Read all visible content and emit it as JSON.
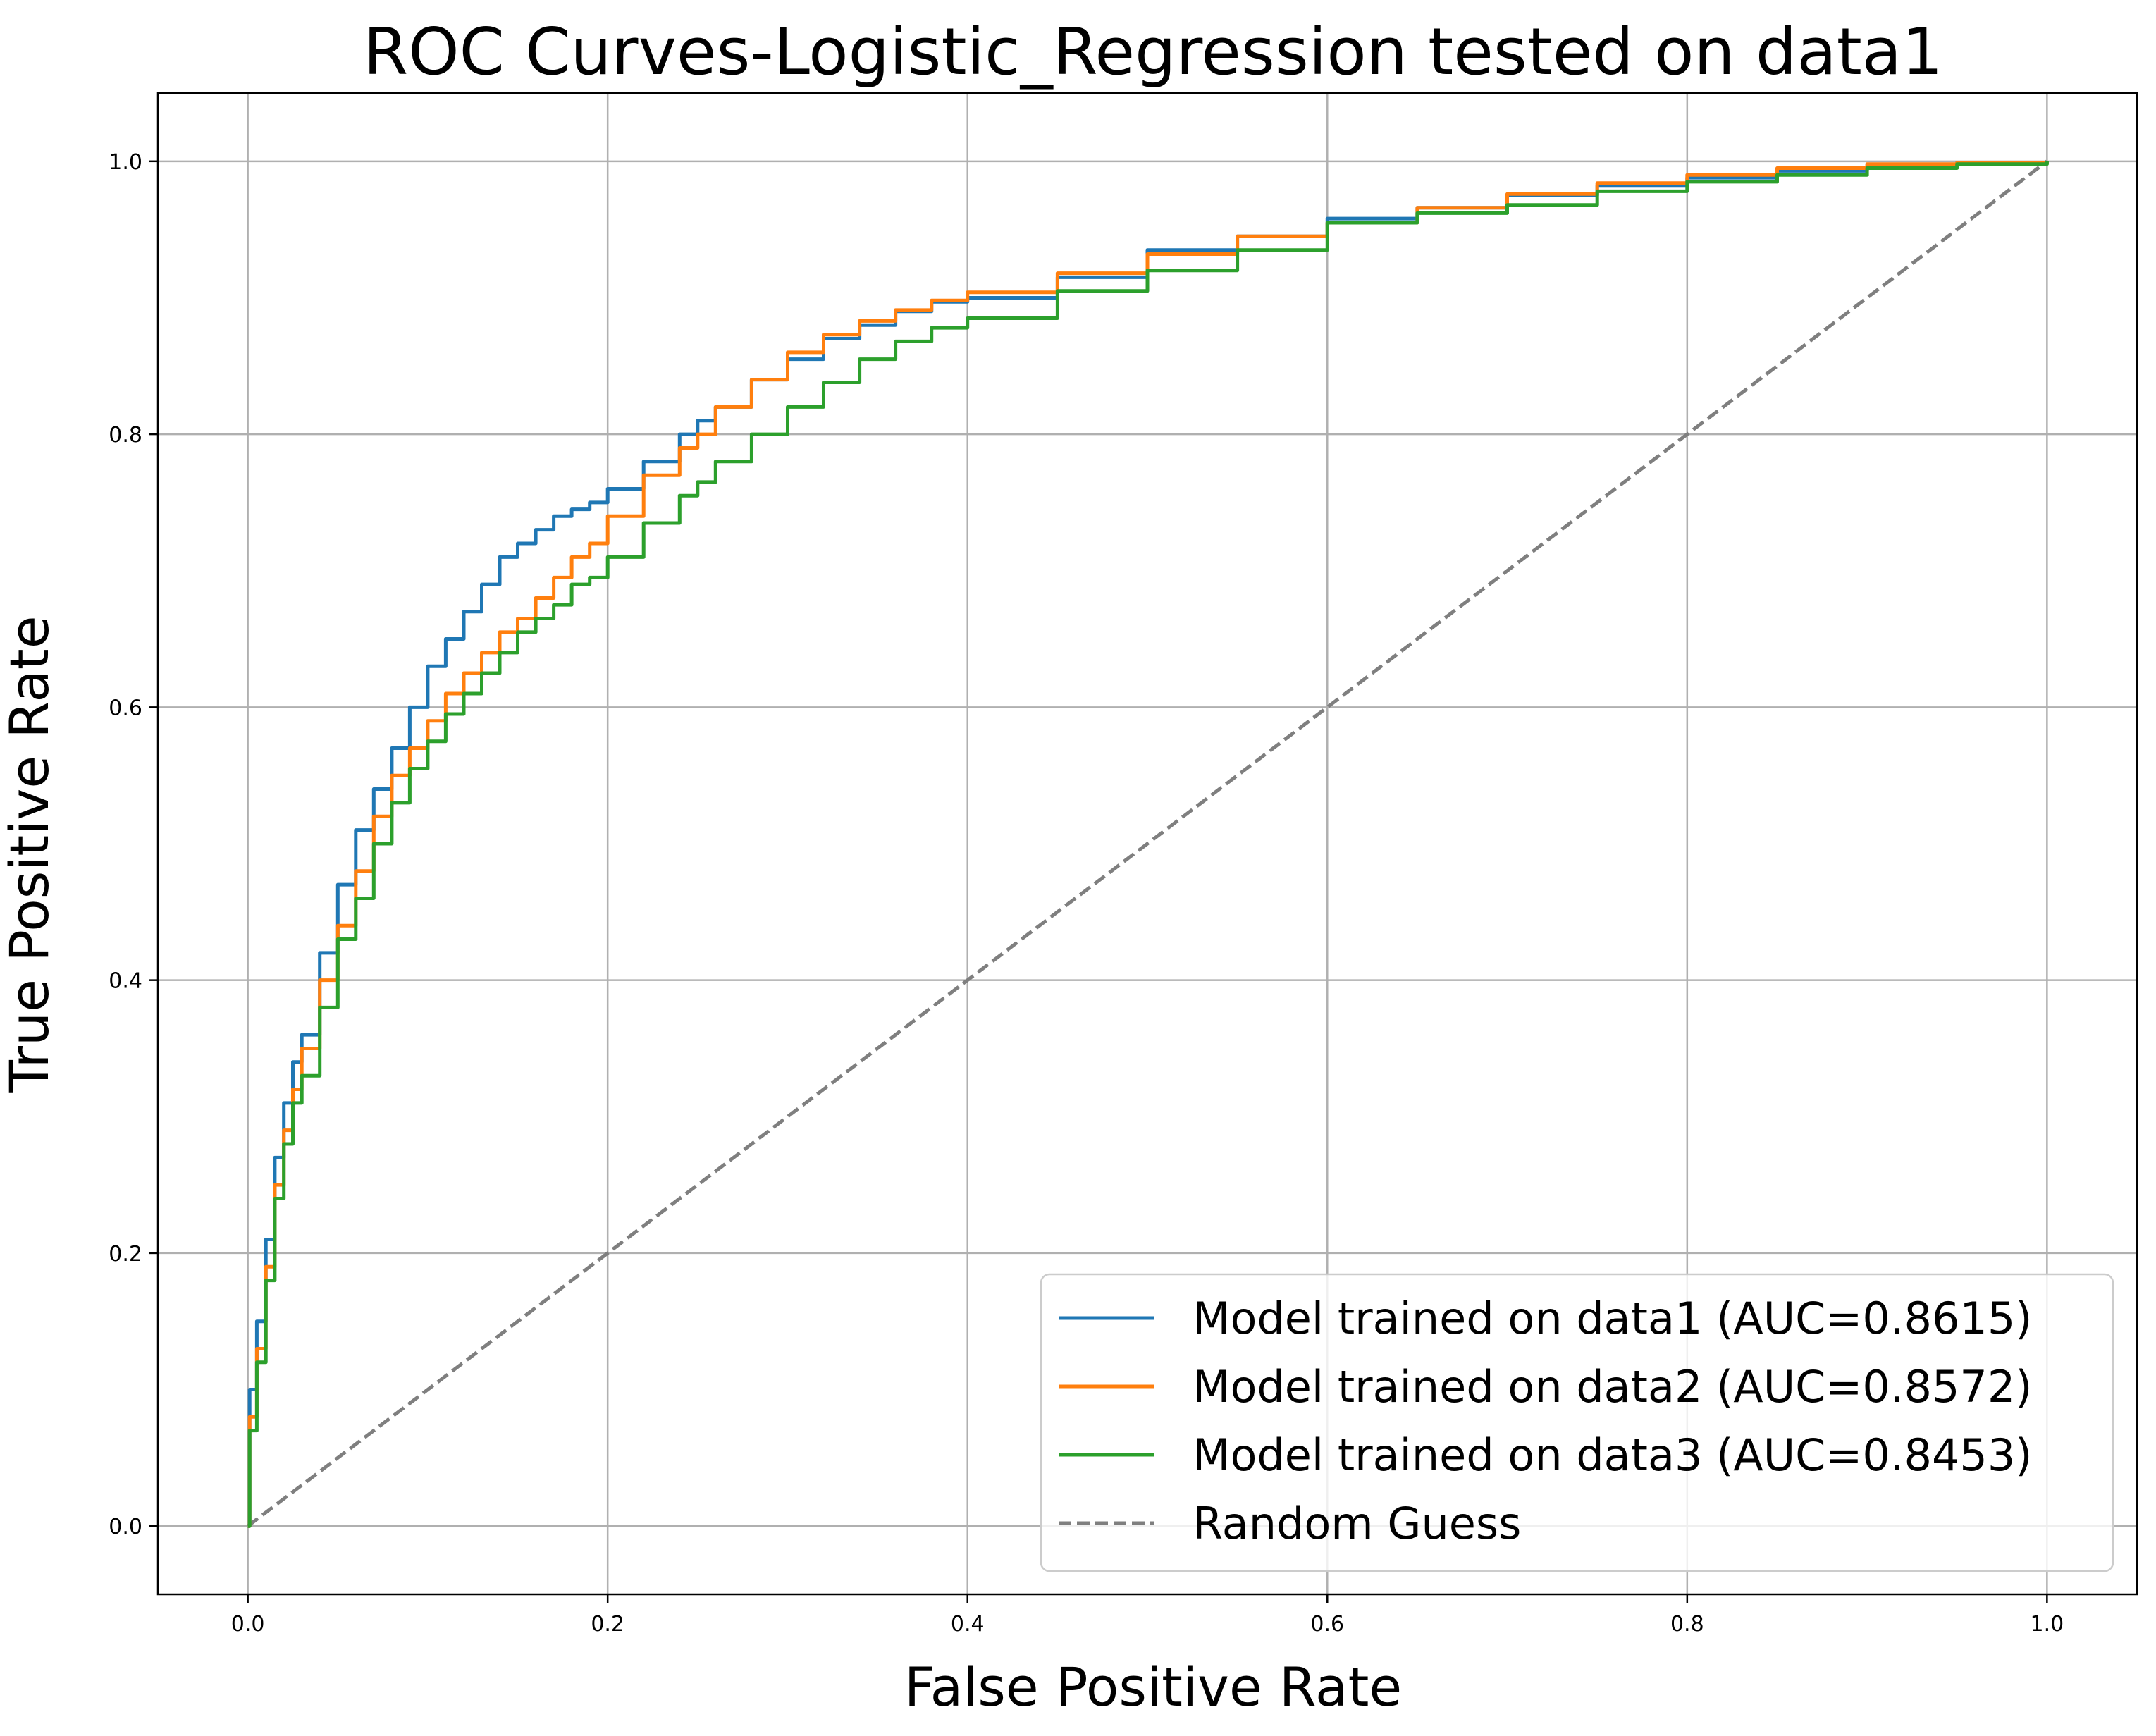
{
  "chart_data": {
    "type": "line",
    "title": "ROC Curves-Logistic_Regression tested on data1",
    "xlabel": "False Positive Rate",
    "ylabel": "True Positive Rate",
    "xlim": [
      -0.05,
      1.05
    ],
    "ylim": [
      -0.05,
      1.05
    ],
    "xticks": [
      0.0,
      0.2,
      0.4,
      0.6,
      0.8,
      1.0
    ],
    "yticks": [
      0.0,
      0.2,
      0.4,
      0.6,
      0.8,
      1.0
    ],
    "xtick_labels": [
      "0.0",
      "0.2",
      "0.4",
      "0.6",
      "0.8",
      "1.0"
    ],
    "ytick_labels": [
      "0.0",
      "0.2",
      "0.4",
      "0.6",
      "0.8",
      "1.0"
    ],
    "grid": true,
    "legend_position": "lower-right",
    "series": [
      {
        "name": "Model trained on data1 (AUC=0.8615)",
        "color": "#1f77b4",
        "line_style": "solid",
        "x": [
          0,
          0.001,
          0.005,
          0.01,
          0.015,
          0.02,
          0.025,
          0.03,
          0.04,
          0.05,
          0.06,
          0.07,
          0.08,
          0.09,
          0.1,
          0.11,
          0.12,
          0.13,
          0.14,
          0.15,
          0.16,
          0.17,
          0.18,
          0.19,
          0.2,
          0.22,
          0.24,
          0.25,
          0.26,
          0.28,
          0.3,
          0.32,
          0.34,
          0.36,
          0.38,
          0.4,
          0.45,
          0.5,
          0.55,
          0.6,
          0.65,
          0.7,
          0.75,
          0.8,
          0.85,
          0.9,
          0.95,
          1.0
        ],
        "y": [
          0,
          0.1,
          0.15,
          0.21,
          0.27,
          0.31,
          0.34,
          0.36,
          0.42,
          0.47,
          0.51,
          0.54,
          0.57,
          0.6,
          0.63,
          0.65,
          0.67,
          0.69,
          0.71,
          0.72,
          0.73,
          0.74,
          0.745,
          0.75,
          0.76,
          0.78,
          0.8,
          0.81,
          0.82,
          0.84,
          0.855,
          0.87,
          0.88,
          0.89,
          0.897,
          0.9,
          0.915,
          0.935,
          0.945,
          0.958,
          0.966,
          0.975,
          0.982,
          0.988,
          0.993,
          0.996,
          0.999,
          1.0
        ]
      },
      {
        "name": "Model trained on data2 (AUC=0.8572)",
        "color": "#ff7f0e",
        "line_style": "solid",
        "x": [
          0,
          0.001,
          0.005,
          0.01,
          0.015,
          0.02,
          0.025,
          0.03,
          0.04,
          0.05,
          0.06,
          0.07,
          0.08,
          0.09,
          0.1,
          0.11,
          0.12,
          0.13,
          0.14,
          0.15,
          0.16,
          0.17,
          0.18,
          0.19,
          0.2,
          0.22,
          0.24,
          0.25,
          0.26,
          0.28,
          0.3,
          0.32,
          0.34,
          0.36,
          0.38,
          0.4,
          0.45,
          0.5,
          0.55,
          0.6,
          0.65,
          0.7,
          0.75,
          0.8,
          0.85,
          0.9,
          0.95,
          1.0
        ],
        "y": [
          0,
          0.08,
          0.13,
          0.19,
          0.25,
          0.29,
          0.32,
          0.35,
          0.4,
          0.44,
          0.48,
          0.52,
          0.55,
          0.57,
          0.59,
          0.61,
          0.625,
          0.64,
          0.655,
          0.665,
          0.68,
          0.695,
          0.71,
          0.72,
          0.74,
          0.77,
          0.79,
          0.8,
          0.82,
          0.84,
          0.86,
          0.873,
          0.883,
          0.891,
          0.898,
          0.904,
          0.918,
          0.932,
          0.945,
          0.955,
          0.966,
          0.976,
          0.984,
          0.99,
          0.995,
          0.998,
          0.999,
          1.0
        ]
      },
      {
        "name": "Model trained on data3 (AUC=0.8453)",
        "color": "#2ca02c",
        "line_style": "solid",
        "x": [
          0,
          0.001,
          0.005,
          0.01,
          0.015,
          0.02,
          0.025,
          0.03,
          0.04,
          0.05,
          0.06,
          0.07,
          0.08,
          0.09,
          0.1,
          0.11,
          0.12,
          0.13,
          0.14,
          0.15,
          0.16,
          0.17,
          0.18,
          0.19,
          0.2,
          0.22,
          0.24,
          0.25,
          0.26,
          0.28,
          0.3,
          0.32,
          0.34,
          0.36,
          0.38,
          0.4,
          0.45,
          0.5,
          0.55,
          0.6,
          0.65,
          0.7,
          0.75,
          0.8,
          0.85,
          0.9,
          0.95,
          1.0
        ],
        "y": [
          0,
          0.07,
          0.12,
          0.18,
          0.24,
          0.28,
          0.31,
          0.33,
          0.38,
          0.43,
          0.46,
          0.5,
          0.53,
          0.555,
          0.575,
          0.595,
          0.61,
          0.625,
          0.64,
          0.655,
          0.665,
          0.675,
          0.69,
          0.695,
          0.71,
          0.735,
          0.755,
          0.765,
          0.78,
          0.8,
          0.82,
          0.838,
          0.855,
          0.868,
          0.878,
          0.885,
          0.905,
          0.92,
          0.935,
          0.955,
          0.962,
          0.968,
          0.978,
          0.985,
          0.99,
          0.995,
          0.998,
          1.0
        ]
      },
      {
        "name": "Random Guess",
        "color": "#7f7f7f",
        "line_style": "dashed",
        "x": [
          0,
          1
        ],
        "y": [
          0,
          1
        ]
      }
    ]
  }
}
